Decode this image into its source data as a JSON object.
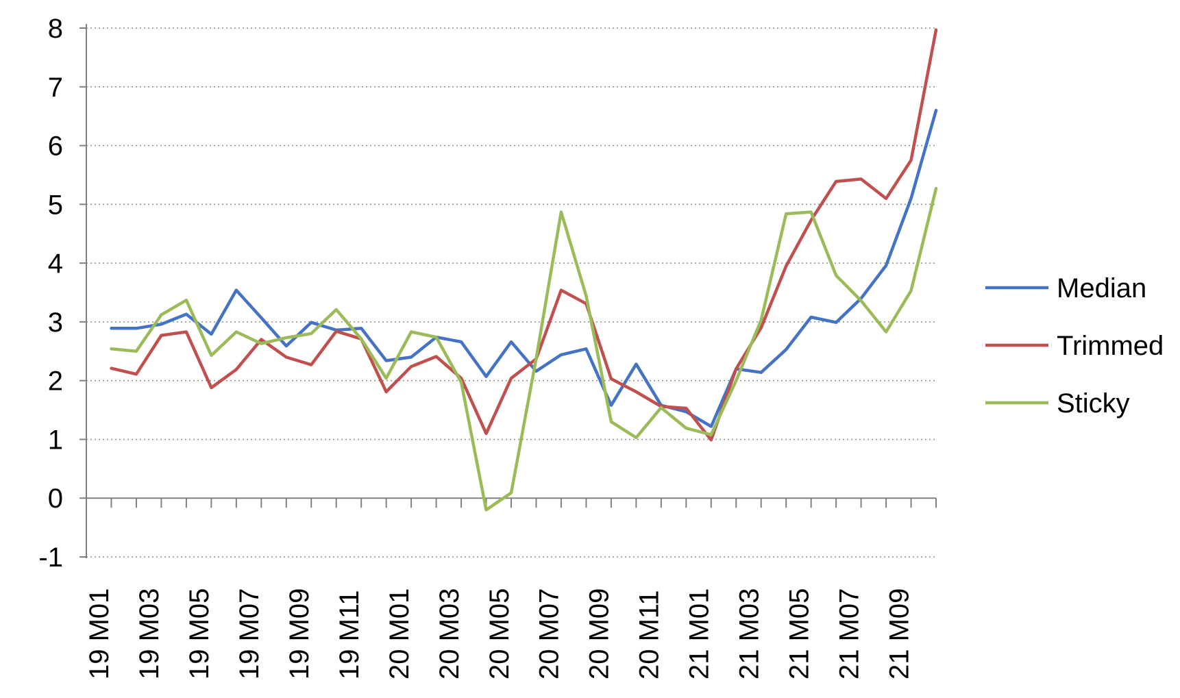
{
  "chart_data": {
    "type": "line",
    "title": "",
    "xlabel": "",
    "ylabel": "",
    "ylim": [
      -1,
      8
    ],
    "yticks": [
      -1,
      0,
      1,
      2,
      3,
      4,
      5,
      6,
      7,
      8
    ],
    "grid": "horizontal-dotted",
    "legend": "right",
    "x": [
      "19 M01",
      "19 M02",
      "19 M03",
      "19 M04",
      "19 M05",
      "19 M06",
      "19 M07",
      "19 M08",
      "19 M09",
      "19 M10",
      "19 M11",
      "19 M12",
      "20 M01",
      "20 M02",
      "20 M03",
      "20 M04",
      "20 M05",
      "20 M06",
      "20 M07",
      "20 M08",
      "20 M09",
      "20 M10",
      "20 M11",
      "20 M12",
      "21 M01",
      "21 M02",
      "21 M03",
      "21 M04",
      "21 M05",
      "21 M06",
      "21 M07",
      "21 M08",
      "21 M09",
      "21 M10"
    ],
    "xtick_labels": [
      "19 M01",
      "19 M03",
      "19 M05",
      "19 M07",
      "19 M09",
      "19 M11",
      "20 M01",
      "20 M03",
      "20 M05",
      "20 M07",
      "20 M09",
      "20 M11",
      "21 M01",
      "21 M03",
      "21 M05",
      "21 M07",
      "21 M09"
    ],
    "series": [
      {
        "name": "Median",
        "color": "#4472C4",
        "values": [
          2.89,
          2.89,
          2.96,
          3.13,
          2.79,
          3.54,
          3.07,
          2.59,
          2.99,
          2.86,
          2.89,
          2.34,
          2.4,
          2.74,
          2.66,
          2.07,
          2.66,
          2.16,
          2.44,
          2.54,
          1.58,
          2.28,
          1.58,
          1.47,
          1.22,
          2.2,
          2.14,
          2.53,
          3.08,
          2.99,
          3.4,
          3.96,
          5.1,
          6.6
        ]
      },
      {
        "name": "Trimmed",
        "color": "#C0504D",
        "values": [
          2.21,
          2.11,
          2.77,
          2.83,
          1.88,
          2.19,
          2.7,
          2.4,
          2.27,
          2.84,
          2.71,
          1.81,
          2.24,
          2.41,
          2.04,
          1.1,
          2.04,
          2.37,
          3.54,
          3.31,
          2.03,
          1.81,
          1.56,
          1.53,
          0.99,
          2.2,
          2.9,
          3.95,
          4.73,
          5.39,
          5.43,
          5.1,
          5.75,
          7.97
        ]
      },
      {
        "name": "Sticky",
        "color": "#9BBB59",
        "values": [
          2.54,
          2.5,
          3.12,
          3.37,
          2.43,
          2.83,
          2.63,
          2.73,
          2.8,
          3.21,
          2.71,
          2.04,
          2.83,
          2.74,
          1.97,
          -0.2,
          0.09,
          2.38,
          4.87,
          3.44,
          1.3,
          1.03,
          1.54,
          1.19,
          1.08,
          2.0,
          3.03,
          4.84,
          4.87,
          3.79,
          3.36,
          2.83,
          3.53,
          5.27
        ]
      }
    ]
  }
}
